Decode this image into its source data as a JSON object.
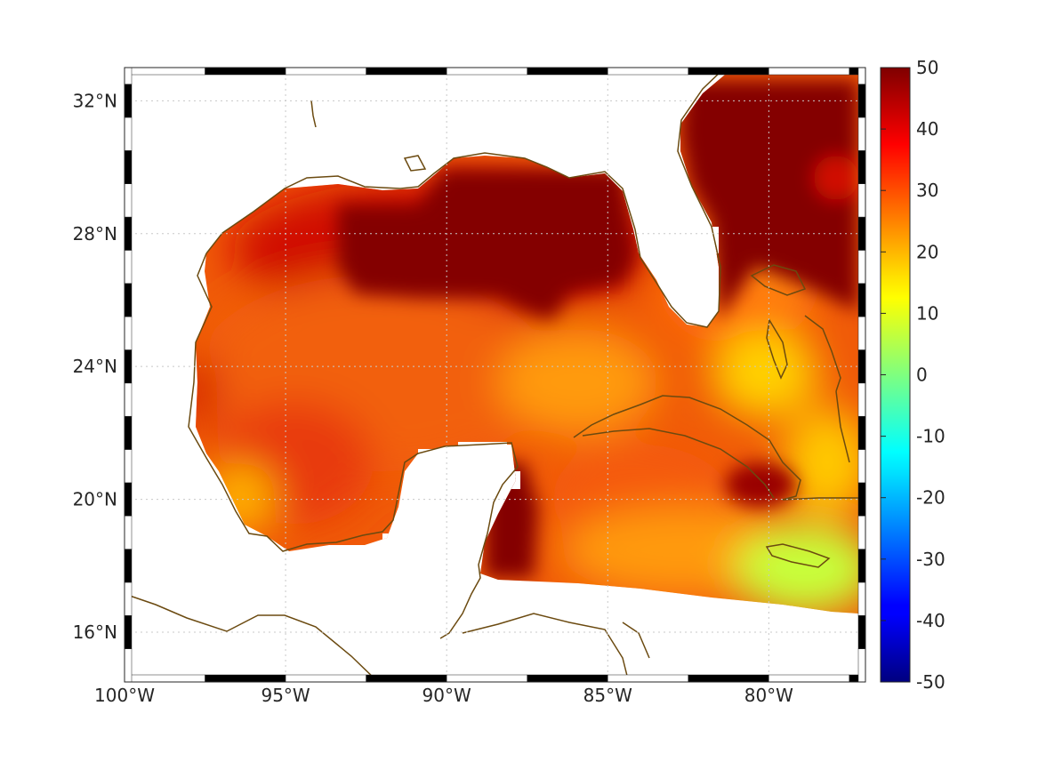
{
  "map": {
    "lon_range": [
      -100,
      -77
    ],
    "lat_range": [
      14.5,
      33
    ],
    "lon_ticks": [
      {
        "value": -100,
        "label": "100°W"
      },
      {
        "value": -95,
        "label": "95°W"
      },
      {
        "value": -90,
        "label": "90°W"
      },
      {
        "value": -85,
        "label": "85°W"
      },
      {
        "value": -80,
        "label": "80°W"
      }
    ],
    "lat_ticks": [
      {
        "value": 16,
        "label": "16°N"
      },
      {
        "value": 20,
        "label": "20°N"
      },
      {
        "value": 24,
        "label": "24°N"
      },
      {
        "value": 28,
        "label": "28°N"
      },
      {
        "value": 32,
        "label": "32°N"
      }
    ],
    "grid": "dotted",
    "frame": "black-white-checkered",
    "coastline_color": "#6b4a10",
    "colormap": "jet",
    "land_color": "#ffffff"
  },
  "colorbar": {
    "min": -50,
    "max": 50,
    "ticks": [
      "50",
      "40",
      "30",
      "20",
      "10",
      "0",
      "-10",
      "-20",
      "-30",
      "-40",
      "-50"
    ],
    "placement": "right"
  }
}
